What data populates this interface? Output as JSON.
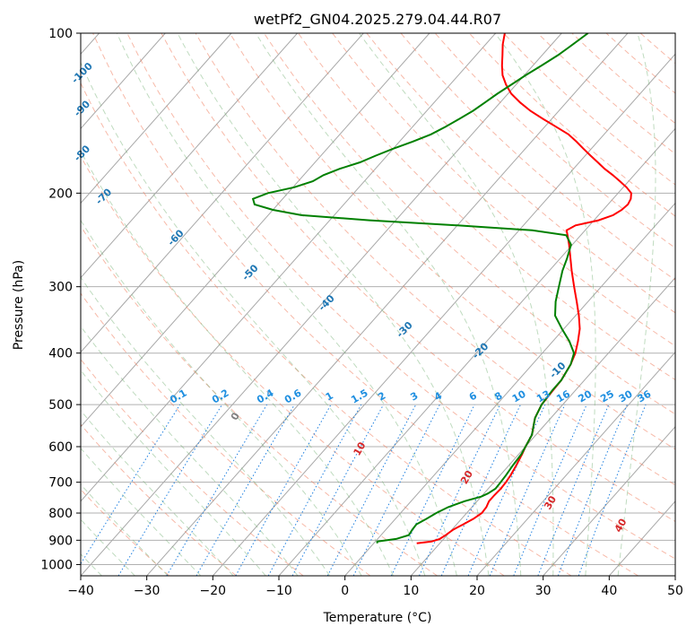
{
  "chart_data": {
    "type": "line",
    "subtype": "skew-t log-p diagram",
    "title": "wetPf2_GN04.2025.279.04.44.R07",
    "xlabel": "Temperature (°C)",
    "ylabel": "Pressure (hPa)",
    "xlim": [
      -40,
      50
    ],
    "ylim": [
      1050,
      100
    ],
    "x_ticks": [
      "−40",
      "−30",
      "−20",
      "−10",
      "0",
      "10",
      "20",
      "30",
      "40",
      "50"
    ],
    "y_ticks": [
      "100",
      "200",
      "300",
      "400",
      "500",
      "600",
      "700",
      "800",
      "900",
      "1000"
    ],
    "y_scale": "log",
    "grid": true,
    "colors": {
      "temperature": "#ff0000",
      "dewpoint": "#008000",
      "dry_adiabat": "#f08060",
      "moist_adiabat": "#70b070",
      "mixing_ratio": "#1f77b4",
      "isotherm": "#707070",
      "isobar": "#a0a0a0"
    },
    "series": [
      {
        "key": "temperature",
        "pressure": [
          912,
          905,
          895,
          880,
          860,
          840,
          820,
          800,
          780,
          760,
          740,
          720,
          700,
          680,
          650,
          620,
          600,
          570,
          550,
          530,
          500,
          470,
          450,
          420,
          400,
          380,
          360,
          340,
          320,
          300,
          280,
          265,
          250,
          240,
          235,
          230,
          225,
          220,
          215,
          210,
          205,
          200,
          195,
          190,
          185,
          180,
          175,
          170,
          165,
          160,
          155,
          150,
          145,
          140,
          135,
          130,
          125,
          120,
          115,
          110,
          105,
          100
        ],
        "temperature": [
          6.5,
          8.5,
          9.4,
          9.8,
          10.2,
          11.0,
          11.8,
          12.3,
          12.2,
          11.8,
          11.8,
          11.9,
          11.8,
          11.6,
          11.1,
          10.5,
          10.0,
          9.4,
          8.5,
          7.6,
          6.8,
          6.6,
          6.5,
          5.8,
          5.0,
          3.8,
          2.4,
          0.5,
          -1.7,
          -4.1,
          -6.6,
          -8.5,
          -10.5,
          -12.0,
          -12.8,
          -12.1,
          -9.3,
          -7.8,
          -7.2,
          -7.0,
          -7.3,
          -8.0,
          -9.5,
          -11.3,
          -13.2,
          -15.3,
          -17.2,
          -19.2,
          -21.2,
          -23.2,
          -25.4,
          -28.3,
          -31.3,
          -34.3,
          -37.0,
          -39.5,
          -41.5,
          -43.3,
          -44.7,
          -46.0,
          -47.4,
          -48.6
        ]
      },
      {
        "key": "dewpoint",
        "pressure": [
          912,
          905,
          895,
          880,
          860,
          840,
          820,
          800,
          780,
          760,
          745,
          735,
          720,
          700,
          680,
          650,
          620,
          600,
          570,
          550,
          530,
          500,
          470,
          450,
          420,
          400,
          380,
          360,
          340,
          320,
          300,
          280,
          265,
          250,
          240,
          235,
          230,
          225,
          220,
          215,
          210,
          205,
          200,
          195,
          190,
          185,
          180,
          175,
          170,
          165,
          160,
          155,
          150,
          145,
          140,
          135,
          130,
          125,
          120,
          115,
          110,
          105,
          100
        ],
        "dewpoint": [
          0.5,
          0.3,
          2.8,
          4.2,
          4.0,
          3.9,
          4.7,
          5.4,
          6.4,
          8.1,
          10.0,
          10.6,
          11.1,
          11.0,
          10.9,
          10.6,
          10.4,
          10.0,
          9.4,
          8.5,
          7.6,
          6.8,
          6.5,
          6.5,
          5.8,
          4.8,
          2.5,
          -0.3,
          -3.1,
          -4.9,
          -6.4,
          -8.0,
          -9.0,
          -10.2,
          -12.2,
          -18.0,
          -30.0,
          -44.0,
          -55.0,
          -60.0,
          -63.5,
          -64.5,
          -63.0,
          -59.8,
          -57.8,
          -57.0,
          -55.4,
          -53.2,
          -51.7,
          -50.0,
          -48.0,
          -46.2,
          -45.0,
          -44.0,
          -43.0,
          -42.3,
          -41.6,
          -40.7,
          -39.8,
          -38.7,
          -37.6,
          -36.8,
          -36.0
        ]
      }
    ],
    "dry_adiabat_labels": [
      "-100",
      "-90",
      "-80",
      "-70",
      "-60",
      "-50",
      "-40",
      "-30",
      "-20",
      "-10"
    ],
    "mixing_ratio_labels": [
      "0.1",
      "0.2",
      "0.4",
      "0.6",
      "1",
      "1.5",
      "2",
      "3",
      "4",
      "6",
      "8",
      "10",
      "13",
      "16",
      "20",
      "25",
      "30",
      "36"
    ],
    "moist_adiabat_labels": [
      "0",
      "10",
      "20",
      "30",
      "40"
    ]
  }
}
